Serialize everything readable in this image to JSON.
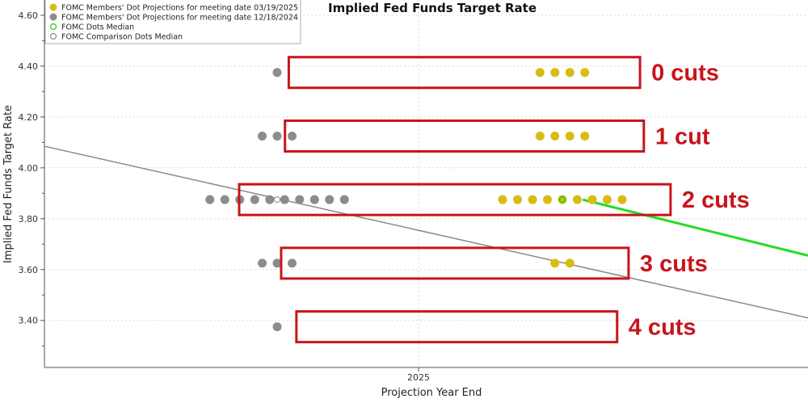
{
  "chart_data": {
    "type": "scatter",
    "title": "Implied Fed Funds Target Rate",
    "xlabel": "Projection Year End",
    "ylabel": "Implied Fed Funds Target Rate",
    "x_ticks": [
      "2025"
    ],
    "y_ticks": [
      "3.40",
      "3.60",
      "3.80",
      "4.00",
      "4.20",
      "4.40",
      "4.60"
    ],
    "ylim": [
      3.215,
      4.66
    ],
    "grid": true,
    "legend_position": "top-left",
    "legend": [
      {
        "label": "FOMC Members' Dot Projections for meeting date 03/19/2025",
        "color": "#d8bc14",
        "marker": "filled-circle"
      },
      {
        "label": "FOMC Members' Dot Projections for meeting date 12/18/2024",
        "color": "#8c8c8c",
        "marker": "filled-circle"
      },
      {
        "label": "FOMC Dots Median",
        "color": "#22cc22",
        "marker": "hollow-circle"
      },
      {
        "label": "FOMC Comparison Dots Median",
        "color": "#8c8c8c",
        "marker": "hollow-circle"
      }
    ],
    "series": [
      {
        "name": "FOMC Members' Dot Projections for meeting date 12/18/2024",
        "color": "#8c8c8c",
        "levels": [
          {
            "y": 4.375,
            "count": 1
          },
          {
            "y": 4.125,
            "count": 3
          },
          {
            "y": 3.875,
            "count": 10
          },
          {
            "y": 3.625,
            "count": 3
          },
          {
            "y": 3.375,
            "count": 1
          }
        ]
      },
      {
        "name": "FOMC Members' Dot Projections for meeting date 03/19/2025",
        "color": "#d8bc14",
        "levels": [
          {
            "y": 4.375,
            "count": 4
          },
          {
            "y": 4.125,
            "count": 4
          },
          {
            "y": 3.875,
            "count": 9
          },
          {
            "y": 3.625,
            "count": 2
          }
        ]
      }
    ],
    "medians": {
      "current": 3.875,
      "comparison": 3.875
    },
    "trend_lines": [
      {
        "name": "Implied Fed Funds Target Rate",
        "color": "#8a8a8a",
        "points": [
          [
            0.0,
            4.085
          ],
          [
            1.0,
            3.41
          ]
        ]
      },
      {
        "name": "FOMC Dots Median",
        "color": "#22dd22",
        "points": [
          [
            0.705,
            3.875
          ],
          [
            1.0,
            3.655
          ]
        ]
      }
    ],
    "annotations": [
      {
        "text": "0 cuts",
        "rate": 4.375,
        "box_span": [
          0.32,
          0.78
        ]
      },
      {
        "text": "1 cut",
        "rate": 4.125,
        "box_span": [
          0.315,
          0.785
        ]
      },
      {
        "text": "2 cuts",
        "rate": 3.875,
        "box_span": [
          0.255,
          0.82
        ]
      },
      {
        "text": "3 cuts",
        "rate": 3.625,
        "box_span": [
          0.31,
          0.765
        ]
      },
      {
        "text": "4 cuts",
        "rate": 3.375,
        "box_span": [
          0.33,
          0.75
        ]
      }
    ],
    "annotation_color": "#c8141b"
  }
}
